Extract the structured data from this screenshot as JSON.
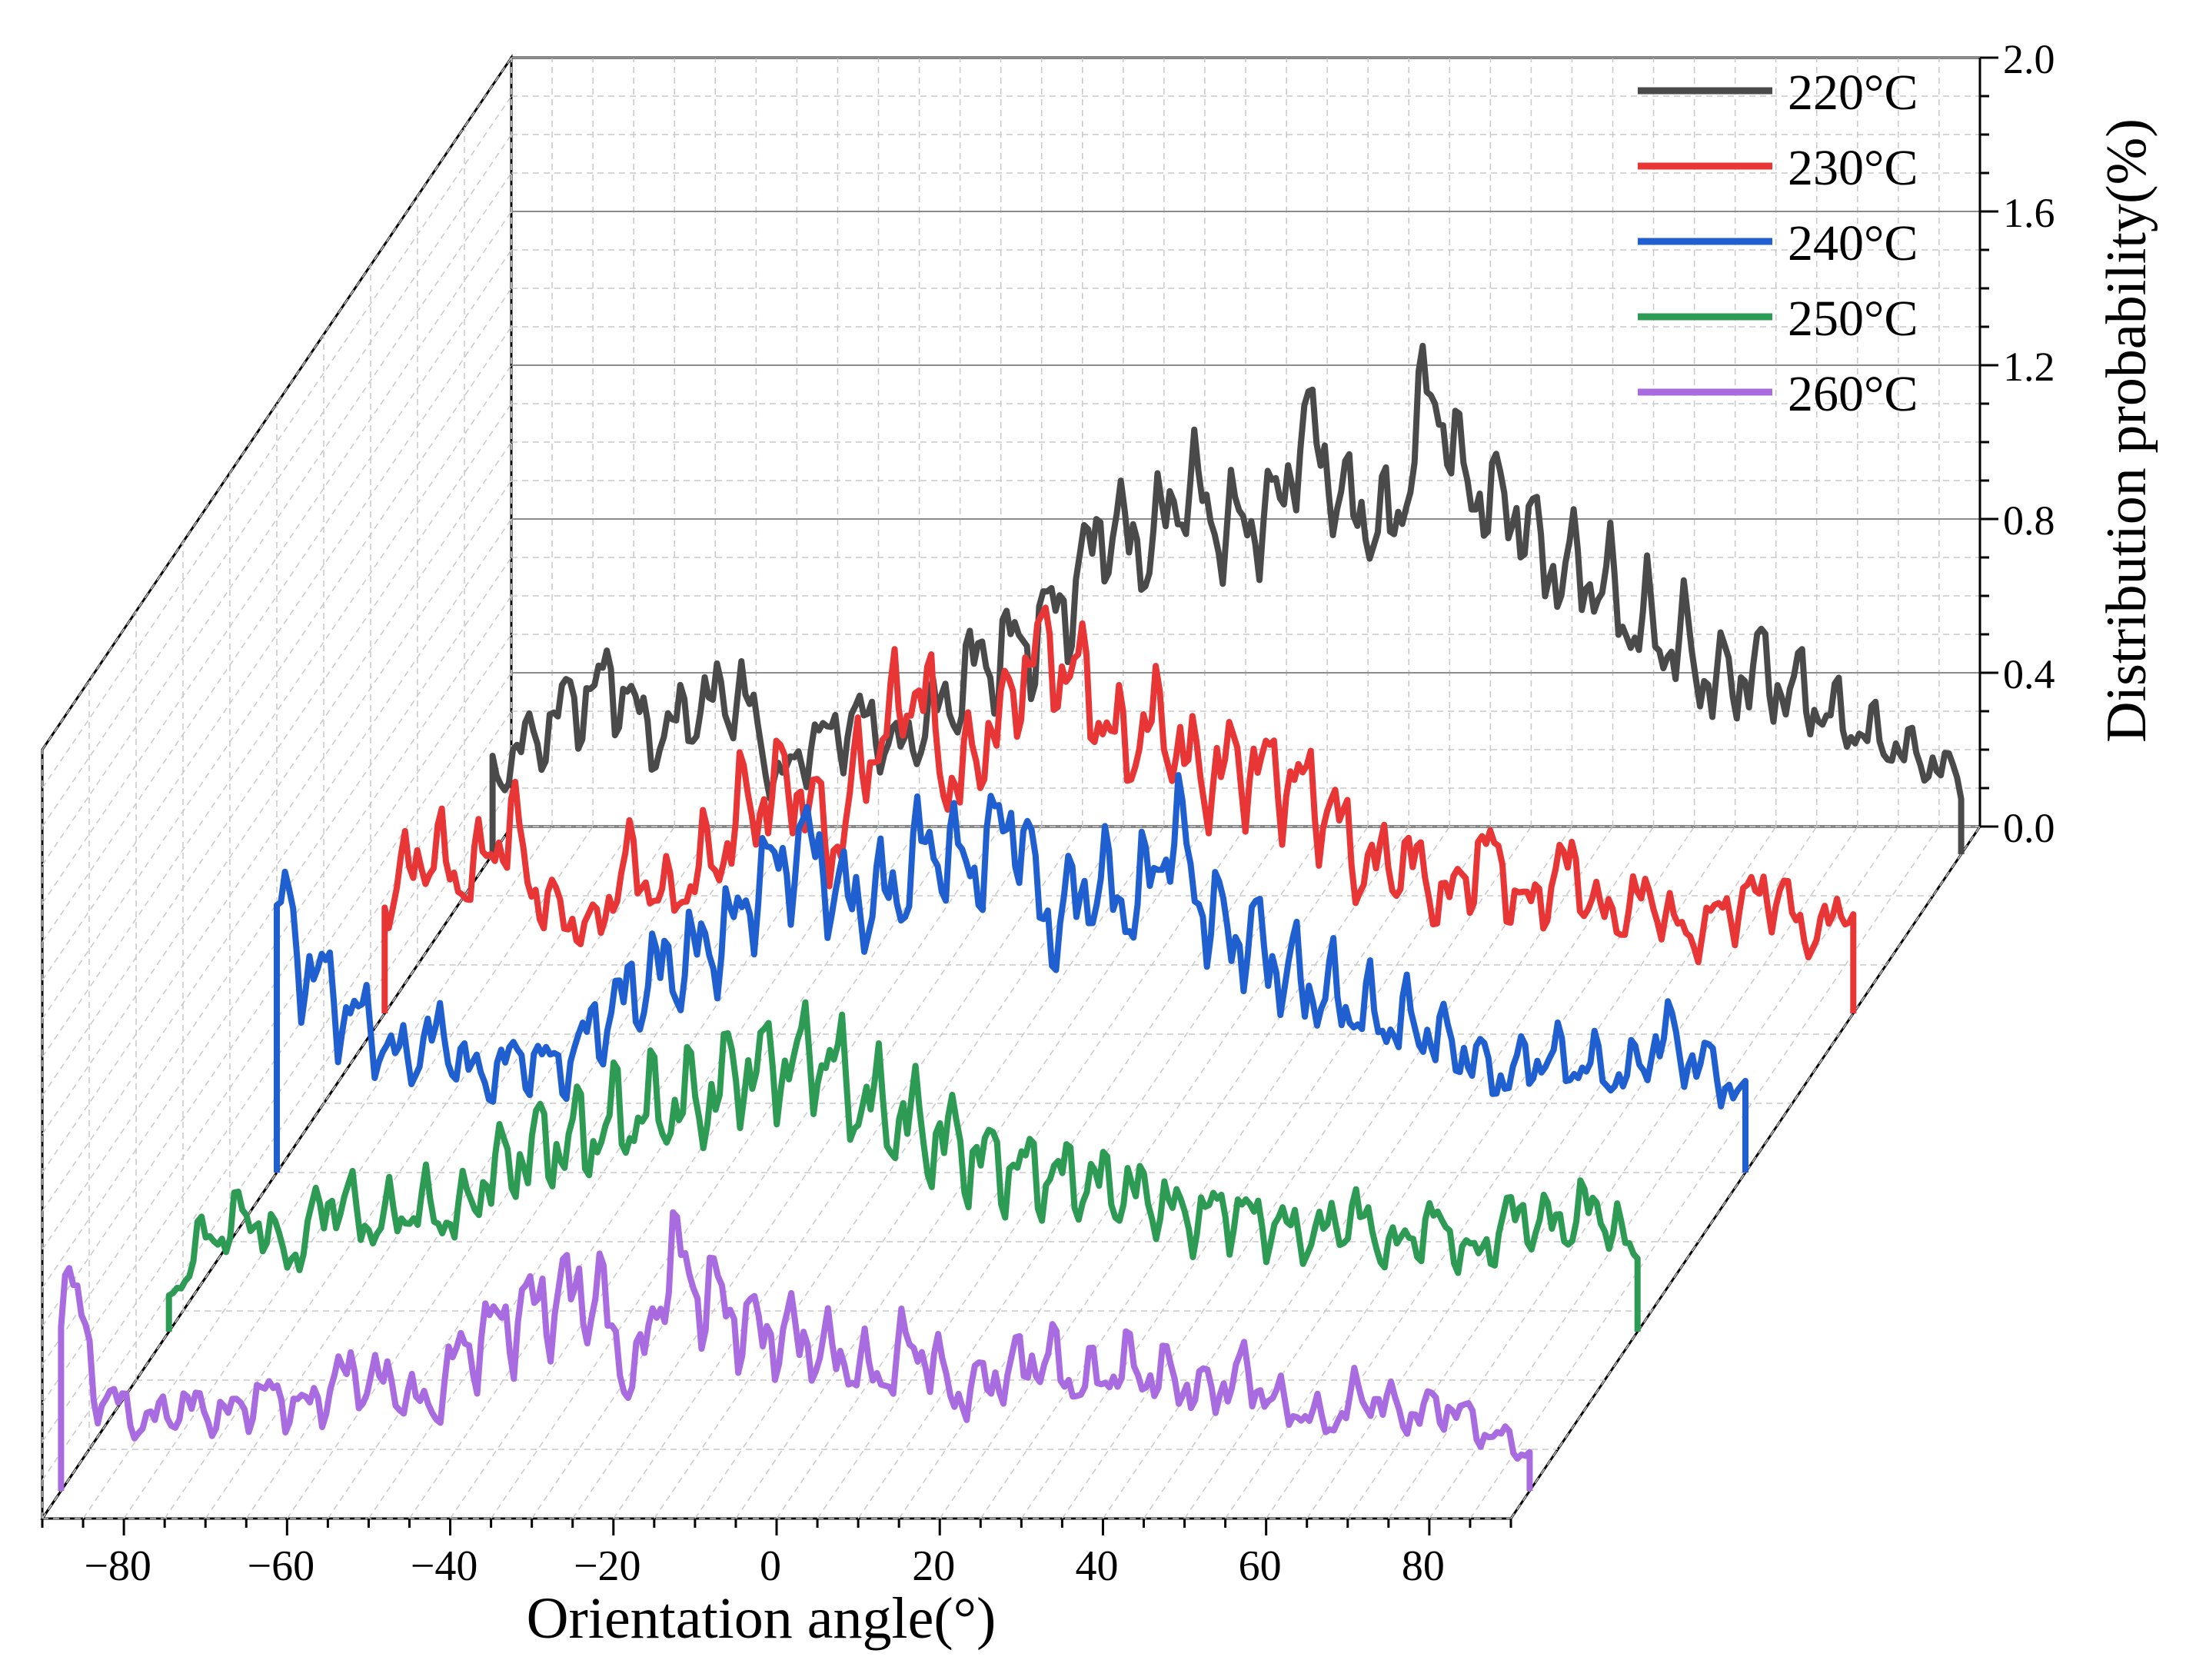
{
  "chart_data": {
    "type": "line",
    "style": "3d-waterfall",
    "xlabel": "Orientation angle(°)",
    "zlabel": "Distribution probability(%)",
    "xlim": [
      -90,
      90
    ],
    "zlim": [
      0,
      2.0
    ],
    "x_ticks": [
      "−80",
      "−60",
      "−40",
      "−20",
      "0",
      "20",
      "40",
      "60",
      "80"
    ],
    "x_tick_values": [
      -80,
      -60,
      -40,
      -20,
      0,
      20,
      40,
      60,
      80
    ],
    "z_ticks": [
      "0.0",
      "0.4",
      "0.8",
      "1.2",
      "1.6",
      "2.0"
    ],
    "z_tick_values": [
      0,
      0.4,
      0.8,
      1.2,
      1.6,
      2.0
    ],
    "grid": true,
    "legend_position": "top-right",
    "x": [
      -90,
      -85,
      -80,
      -75,
      -70,
      -65,
      -60,
      -55,
      -50,
      -45,
      -40,
      -35,
      -30,
      -25,
      -20,
      -15,
      -10,
      -5,
      0,
      5,
      10,
      15,
      20,
      25,
      30,
      35,
      40,
      45,
      50,
      55,
      60,
      65,
      70,
      75,
      80,
      85,
      90
    ],
    "series": [
      {
        "name": "220°C",
        "color": "#4a4a4a",
        "values": [
          0.2,
          0.3,
          0.4,
          0.45,
          0.3,
          0.38,
          0.42,
          0.2,
          0.3,
          0.35,
          0.28,
          0.38,
          0.5,
          0.55,
          0.65,
          0.85,
          0.8,
          0.95,
          0.85,
          0.88,
          1.1,
          0.9,
          0.85,
          1.2,
          0.95,
          0.9,
          0.75,
          0.72,
          0.6,
          0.55,
          0.45,
          0.48,
          0.42,
          0.35,
          0.3,
          0.25,
          0.2
        ]
      },
      {
        "name": "230°C",
        "color": "#e83535",
        "values": [
          0.3,
          0.42,
          0.35,
          0.48,
          0.28,
          0.22,
          0.38,
          0.3,
          0.4,
          0.55,
          0.6,
          0.45,
          0.7,
          0.85,
          0.6,
          0.75,
          0.95,
          0.88,
          0.7,
          0.75,
          0.62,
          0.65,
          0.62,
          0.55,
          0.38,
          0.4,
          0.3,
          0.42,
          0.28,
          0.38,
          0.25,
          0.3,
          0.2,
          0.28,
          0.32,
          0.2,
          0.3
        ]
      },
      {
        "name": "240°C",
        "color": "#1f5fd0",
        "values": [
          0.7,
          0.5,
          0.4,
          0.3,
          0.35,
          0.25,
          0.3,
          0.28,
          0.4,
          0.5,
          0.55,
          0.62,
          0.78,
          0.85,
          0.7,
          0.72,
          0.85,
          0.8,
          0.92,
          0.65,
          0.75,
          0.7,
          0.88,
          0.65,
          0.6,
          0.5,
          0.45,
          0.4,
          0.38,
          0.32,
          0.25,
          0.3,
          0.28,
          0.25,
          0.35,
          0.28,
          0.2
        ]
      },
      {
        "name": "250°C",
        "color": "#2e9b55",
        "values": [
          0.1,
          0.25,
          0.3,
          0.2,
          0.35,
          0.28,
          0.32,
          0.3,
          0.42,
          0.48,
          0.5,
          0.55,
          0.58,
          0.6,
          0.68,
          0.7,
          0.72,
          0.6,
          0.55,
          0.5,
          0.45,
          0.42,
          0.4,
          0.38,
          0.35,
          0.3,
          0.32,
          0.28,
          0.25,
          0.3,
          0.22,
          0.28,
          0.2,
          0.3,
          0.28,
          0.32,
          0.2
        ]
      },
      {
        "name": "260°C",
        "color": "#a86be0",
        "values": [
          0.6,
          0.25,
          0.18,
          0.22,
          0.2,
          0.25,
          0.22,
          0.3,
          0.28,
          0.22,
          0.38,
          0.45,
          0.5,
          0.52,
          0.3,
          0.6,
          0.5,
          0.42,
          0.4,
          0.35,
          0.3,
          0.38,
          0.25,
          0.3,
          0.35,
          0.28,
          0.32,
          0.3,
          0.26,
          0.3,
          0.22,
          0.18,
          0.25,
          0.2,
          0.22,
          0.15,
          0.1
        ]
      }
    ]
  }
}
